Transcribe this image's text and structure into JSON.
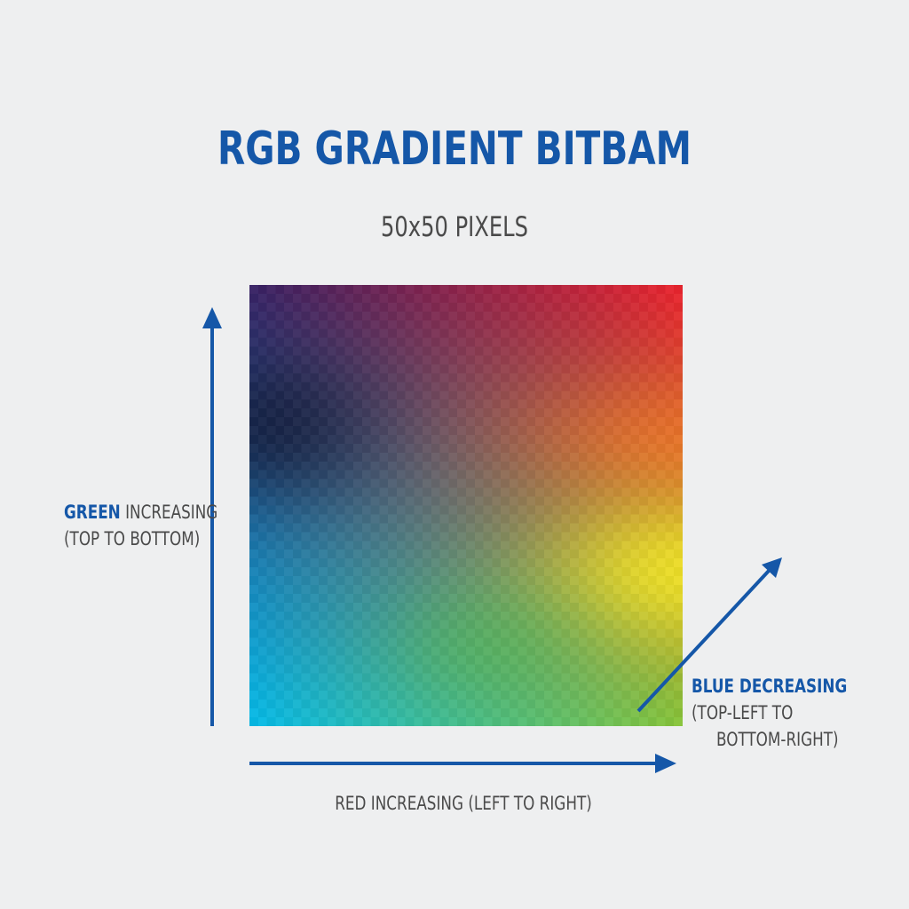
{
  "title": "RGB GRADIENT BITBAM",
  "subtitle": "50x50 PIXELS",
  "colors": {
    "background": "#eeeff0",
    "accent_blue": "#1557a8",
    "text_gray": "#4a4a4a"
  },
  "bitmap": {
    "grid_size": 50,
    "red_channel": "increasing left to right",
    "green_channel": "increasing top to bottom",
    "blue_channel": "decreasing top-left to bottom-right"
  },
  "labels": {
    "green": {
      "emphasis": "GREEN",
      "rest": " INCREASING",
      "line2": "(TOP TO BOTTOM)"
    },
    "blue": {
      "line1": "BLUE DECREASING",
      "line2": "(TOP-LEFT TO",
      "line3": "BOTTOM-RIGHT)"
    },
    "red": "RED INCREASING (LEFT TO RIGHT)"
  }
}
